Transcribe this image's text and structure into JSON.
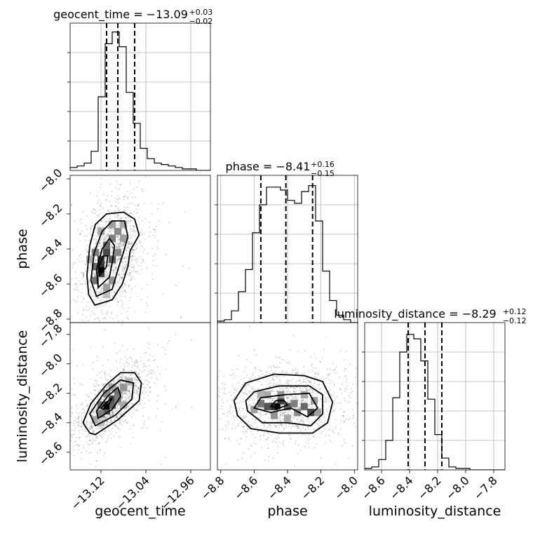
{
  "chart_data": {
    "type": "corner",
    "parameters": [
      {
        "name": "geocent_time",
        "axis_label": "geocent_time",
        "title": "geocent_time = −13.09",
        "title_upper": "+0.03",
        "title_lower": "−0.02",
        "median": -13.09,
        "q16": -13.11,
        "q84": -13.06,
        "range": [
          -13.175,
          -12.925
        ],
        "ticks": [
          -13.12,
          -13.04,
          -12.96
        ],
        "tick_labels": [
          "−13.12",
          "−13.04",
          "−12.96"
        ],
        "hist": [
          0.02,
          0.03,
          0.05,
          0.13,
          0.5,
          0.86,
          0.94,
          0.84,
          0.53,
          0.32,
          0.15,
          0.08,
          0.05,
          0.04,
          0.03,
          0.02,
          0.01,
          0.01,
          0.0,
          0.0
        ]
      },
      {
        "name": "phase",
        "axis_label": "phase",
        "title": "phase = −8.41",
        "title_upper": "+0.16",
        "title_lower": "−0.15",
        "median": -8.41,
        "q16": -8.56,
        "q84": -8.25,
        "range": [
          -8.82,
          -7.98
        ],
        "ticks": [
          -8.8,
          -8.6,
          -8.4,
          -8.2,
          -8.0
        ],
        "tick_labels": [
          "−8.8",
          "−8.6",
          "−8.4",
          "−8.2",
          "−8.0"
        ],
        "hist": [
          0.01,
          0.02,
          0.08,
          0.21,
          0.36,
          0.61,
          0.8,
          0.92,
          0.92,
          0.9,
          0.83,
          0.81,
          0.89,
          0.93,
          0.69,
          0.35,
          0.15,
          0.05,
          0.02,
          0.0
        ]
      },
      {
        "name": "luminosity_distance",
        "axis_label": "luminosity_distance",
        "title": "luminosity_distance = −8.29",
        "title_upper": "+0.12",
        "title_lower": "−0.12",
        "median": -8.29,
        "q16": -8.41,
        "q84": -8.17,
        "range": [
          -8.72,
          -7.72
        ],
        "ticks": [
          -8.6,
          -8.4,
          -8.2,
          -8.0,
          -7.8
        ],
        "tick_labels": [
          "−8.6",
          "−8.4",
          "−8.2",
          "−8.0",
          "−7.8"
        ],
        "hist": [
          0.01,
          0.02,
          0.07,
          0.2,
          0.49,
          0.8,
          0.92,
          0.89,
          0.74,
          0.48,
          0.24,
          0.08,
          0.02,
          0.01,
          0.01,
          0.0,
          0.0,
          0.0,
          0.0,
          0.0
        ]
      }
    ],
    "pairs": [
      {
        "x": "geocent_time",
        "y": "phase",
        "peak": [
          -13.12,
          -8.52
        ],
        "contours": [
          [
            [
              -13.131,
              -8.72
            ],
            [
              -13.1,
              -8.69
            ],
            [
              -13.082,
              -8.6
            ],
            [
              -13.072,
              -8.5
            ],
            [
              -13.068,
              -8.41
            ],
            [
              -13.052,
              -8.32
            ],
            [
              -13.06,
              -8.23
            ],
            [
              -13.08,
              -8.19
            ],
            [
              -13.11,
              -8.2
            ],
            [
              -13.13,
              -8.26
            ],
            [
              -13.14,
              -8.38
            ],
            [
              -13.145,
              -8.55
            ],
            [
              -13.142,
              -8.66
            ]
          ],
          [
            [
              -13.128,
              -8.67
            ],
            [
              -13.1,
              -8.63
            ],
            [
              -13.09,
              -8.52
            ],
            [
              -13.08,
              -8.42
            ],
            [
              -13.072,
              -8.33
            ],
            [
              -13.078,
              -8.24
            ],
            [
              -13.1,
              -8.24
            ],
            [
              -13.118,
              -8.3
            ],
            [
              -13.132,
              -8.42
            ],
            [
              -13.138,
              -8.58
            ]
          ],
          [
            [
              -13.125,
              -8.62
            ],
            [
              -13.105,
              -8.56
            ],
            [
              -13.099,
              -8.46
            ],
            [
              -13.096,
              -8.38
            ],
            [
              -13.105,
              -8.34
            ],
            [
              -13.118,
              -8.4
            ],
            [
              -13.128,
              -8.52
            ]
          ],
          [
            [
              -13.122,
              -8.55
            ],
            [
              -13.11,
              -8.5
            ],
            [
              -13.108,
              -8.44
            ],
            [
              -13.116,
              -8.44
            ],
            [
              -13.124,
              -8.5
            ]
          ]
        ],
        "density": [
          [
            -13.12,
            -8.5,
            0.95
          ],
          [
            -13.12,
            -8.46,
            0.9
          ],
          [
            -13.11,
            -8.42,
            0.85
          ],
          [
            -13.12,
            -8.54,
            0.9
          ],
          [
            -13.11,
            -8.38,
            0.7
          ],
          [
            -13.1,
            -8.46,
            0.75
          ],
          [
            -13.13,
            -8.58,
            0.65
          ],
          [
            -13.1,
            -8.34,
            0.6
          ],
          [
            -13.09,
            -8.3,
            0.55
          ],
          [
            -13.11,
            -8.62,
            0.45
          ],
          [
            -13.13,
            -8.42,
            0.6
          ],
          [
            -13.08,
            -8.26,
            0.4
          ],
          [
            -13.1,
            -8.26,
            0.45
          ],
          [
            -13.12,
            -8.3,
            0.4
          ],
          [
            -13.09,
            -8.42,
            0.55
          ],
          [
            -13.13,
            -8.5,
            0.7
          ],
          [
            -13.1,
            -8.58,
            0.5
          ],
          [
            -13.11,
            -8.66,
            0.3
          ],
          [
            -13.08,
            -8.34,
            0.45
          ],
          [
            -13.14,
            -8.46,
            0.4
          ]
        ]
      },
      {
        "x": "geocent_time",
        "y": "luminosity_distance",
        "peak": [
          -13.11,
          -8.29
        ],
        "contours": [
          [
            [
              -13.14,
              -8.47
            ],
            [
              -13.13,
              -8.48
            ],
            [
              -13.09,
              -8.38
            ],
            [
              -13.052,
              -8.25
            ],
            [
              -13.048,
              -8.13
            ],
            [
              -13.06,
              -8.06
            ],
            [
              -13.085,
              -8.06
            ],
            [
              -13.11,
              -8.14
            ],
            [
              -13.138,
              -8.27
            ],
            [
              -13.152,
              -8.4
            ]
          ],
          [
            [
              -13.13,
              -8.42
            ],
            [
              -13.095,
              -8.35
            ],
            [
              -13.065,
              -8.24
            ],
            [
              -13.062,
              -8.13
            ],
            [
              -13.085,
              -8.11
            ],
            [
              -13.115,
              -8.2
            ],
            [
              -13.14,
              -8.34
            ]
          ],
          [
            [
              -13.125,
              -8.37
            ],
            [
              -13.1,
              -8.31
            ],
            [
              -13.085,
              -8.22
            ],
            [
              -13.09,
              -8.16
            ],
            [
              -13.108,
              -8.22
            ],
            [
              -13.128,
              -8.32
            ]
          ],
          [
            [
              -13.116,
              -8.31
            ],
            [
              -13.105,
              -8.27
            ],
            [
              -13.1,
              -8.23
            ],
            [
              -13.11,
              -8.26
            ],
            [
              -13.12,
              -8.3
            ]
          ]
        ],
        "density": [
          [
            -13.11,
            -8.28,
            0.95
          ],
          [
            -13.1,
            -8.24,
            0.85
          ],
          [
            -13.11,
            -8.32,
            0.8
          ],
          [
            -13.09,
            -8.2,
            0.65
          ],
          [
            -13.12,
            -8.34,
            0.6
          ],
          [
            -13.08,
            -8.16,
            0.5
          ],
          [
            -13.1,
            -8.28,
            0.75
          ],
          [
            -13.12,
            -8.28,
            0.65
          ],
          [
            -13.09,
            -8.24,
            0.6
          ],
          [
            -13.13,
            -8.38,
            0.4
          ],
          [
            -13.07,
            -8.12,
            0.35
          ],
          [
            -13.1,
            -8.16,
            0.45
          ],
          [
            -13.11,
            -8.2,
            0.55
          ],
          [
            -13.12,
            -8.4,
            0.3
          ],
          [
            -13.08,
            -8.28,
            0.4
          ]
        ]
      },
      {
        "x": "phase",
        "y": "luminosity_distance",
        "peak": [
          -8.46,
          -8.29
        ],
        "contours": [
          [
            [
              -8.7,
              -8.35
            ],
            [
              -8.62,
              -8.44
            ],
            [
              -8.45,
              -8.47
            ],
            [
              -8.25,
              -8.47
            ],
            [
              -8.16,
              -8.4
            ],
            [
              -8.13,
              -8.26
            ],
            [
              -8.19,
              -8.12
            ],
            [
              -8.3,
              -8.08
            ],
            [
              -8.48,
              -8.07
            ],
            [
              -8.65,
              -8.13
            ],
            [
              -8.72,
              -8.25
            ]
          ],
          [
            [
              -8.64,
              -8.32
            ],
            [
              -8.55,
              -8.4
            ],
            [
              -8.4,
              -8.4
            ],
            [
              -8.26,
              -8.42
            ],
            [
              -8.19,
              -8.34
            ],
            [
              -8.19,
              -8.21
            ],
            [
              -8.27,
              -8.15
            ],
            [
              -8.45,
              -8.15
            ],
            [
              -8.6,
              -8.19
            ],
            [
              -8.65,
              -8.25
            ]
          ],
          [
            [
              -8.6,
              -8.3
            ],
            [
              -8.5,
              -8.33
            ],
            [
              -8.38,
              -8.3
            ],
            [
              -8.28,
              -8.36
            ],
            [
              -8.22,
              -8.3
            ],
            [
              -8.27,
              -8.2
            ],
            [
              -8.42,
              -8.21
            ],
            [
              -8.56,
              -8.23
            ]
          ],
          [
            [
              -8.5,
              -8.29
            ],
            [
              -8.45,
              -8.3
            ],
            [
              -8.4,
              -8.28
            ],
            [
              -8.42,
              -8.25
            ],
            [
              -8.47,
              -8.25
            ]
          ]
        ],
        "density": [
          [
            -8.48,
            -8.29,
            0.95
          ],
          [
            -8.44,
            -8.25,
            0.9
          ],
          [
            -8.52,
            -8.29,
            0.8
          ],
          [
            -8.4,
            -8.29,
            0.75
          ],
          [
            -8.56,
            -8.27,
            0.65
          ],
          [
            -8.36,
            -8.27,
            0.6
          ],
          [
            -8.3,
            -8.29,
            0.7
          ],
          [
            -8.26,
            -8.33,
            0.85
          ],
          [
            -8.34,
            -8.33,
            0.55
          ],
          [
            -8.6,
            -8.31,
            0.45
          ],
          [
            -8.44,
            -8.21,
            0.5
          ],
          [
            -8.48,
            -8.35,
            0.5
          ],
          [
            -8.3,
            -8.21,
            0.4
          ],
          [
            -8.24,
            -8.25,
            0.45
          ],
          [
            -8.56,
            -8.21,
            0.35
          ],
          [
            -8.4,
            -8.37,
            0.4
          ],
          [
            -8.52,
            -8.21,
            0.4
          ],
          [
            -8.22,
            -8.33,
            0.45
          ]
        ]
      }
    ]
  }
}
